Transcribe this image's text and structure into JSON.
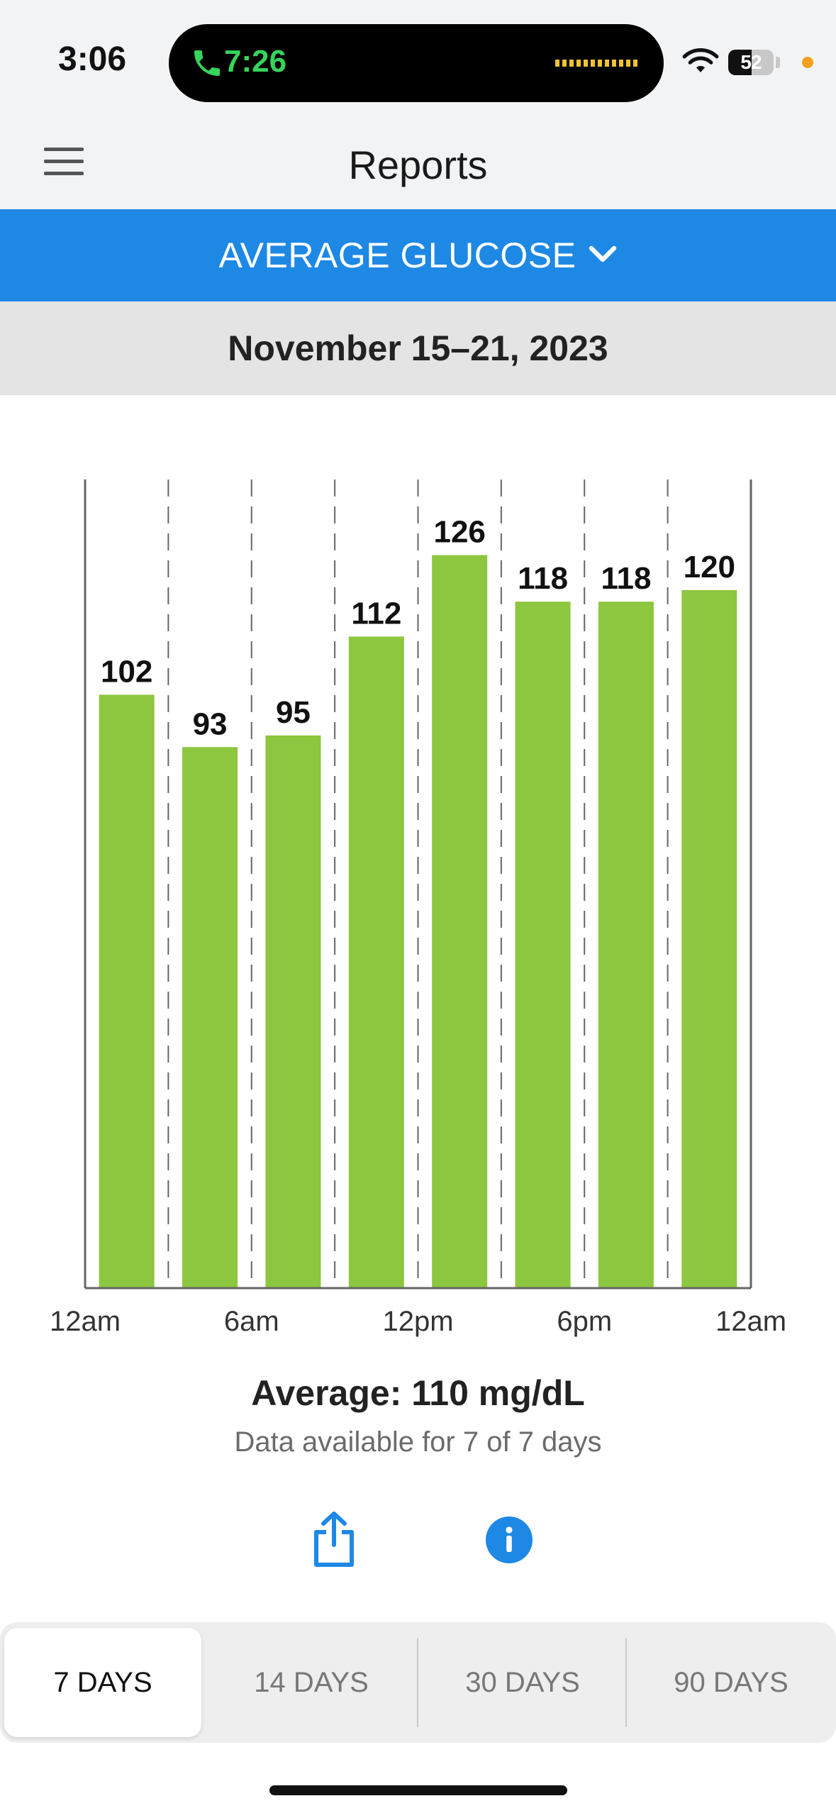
{
  "status_bar": {
    "time": "3:06",
    "call_time": "7:26",
    "battery_percent": "52",
    "battery_level": 0.52
  },
  "header": {
    "title": "Reports"
  },
  "report_selector": {
    "label": "AVERAGE GLUCOSE"
  },
  "date_range": "November 15–21, 2023",
  "chart_data": {
    "type": "bar",
    "categories": [
      "12am-3am",
      "3am-6am",
      "6am-9am",
      "9am-12pm",
      "12pm-3pm",
      "3pm-6pm",
      "6pm-9pm",
      "9pm-12am"
    ],
    "values": [
      102,
      93,
      95,
      112,
      126,
      118,
      118,
      120
    ],
    "value_labels": [
      "102",
      "93",
      "95",
      "112",
      "126",
      "118",
      "118",
      "120"
    ],
    "x_tick_labels": [
      "12am",
      "6am",
      "12pm",
      "6pm",
      "12am"
    ],
    "ylim": [
      0,
      139
    ],
    "grid": "vertical dashed",
    "bar_color": "#8dc63f",
    "title": "",
    "xlabel": "",
    "ylabel": ""
  },
  "summary": {
    "average": "Average: 110 mg/dL",
    "availability": "Data available for 7 of 7 days"
  },
  "actions": {
    "share_icon": "share-icon",
    "info_icon": "info-icon"
  },
  "range_tabs": [
    {
      "label": "7 DAYS",
      "active": true
    },
    {
      "label": "14 DAYS",
      "active": false
    },
    {
      "label": "30 DAYS",
      "active": false
    },
    {
      "label": "90 DAYS",
      "active": false
    }
  ],
  "colors": {
    "accent": "#1e88e5",
    "bar": "#8dc63f",
    "call_green": "#35d45a"
  }
}
